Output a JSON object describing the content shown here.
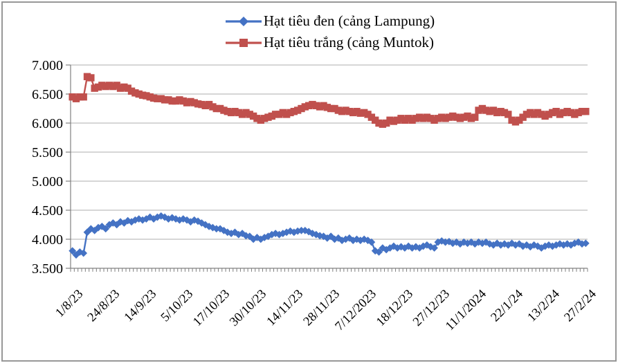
{
  "chart_data": {
    "type": "line",
    "title": "",
    "xlabel": "",
    "ylabel": "",
    "grid": true,
    "legend_position": "top-center",
    "y_min": 3500,
    "y_max": 7000,
    "y_step": 500,
    "y_tick_labels": [
      "3.500",
      "4.000",
      "4.500",
      "5.000",
      "5.500",
      "6.000",
      "6.500",
      "7.000"
    ],
    "x_tick_labels": [
      "1/8/23",
      "24/8/23",
      "14/9/23",
      "5/10/23",
      "17/10/23",
      "30/10/23",
      "14/11/23",
      "28/11/23",
      "7/12/2023",
      "18/12/23",
      "27/12/23",
      "11/1/2024",
      "22/1/24",
      "13/2/24",
      "27/2/24"
    ],
    "axis_color": "#808080",
    "gridline_color": "#ACACAC",
    "series": [
      {
        "name": "Hạt tiêu đen (cảng Lampung)",
        "color": "#4472C4",
        "marker": "diamond",
        "values": [
          3800,
          3730,
          3780,
          3760,
          4120,
          4180,
          4150,
          4200,
          4220,
          4180,
          4250,
          4280,
          4250,
          4300,
          4280,
          4320,
          4300,
          4330,
          4350,
          4330,
          4350,
          4380,
          4350,
          4380,
          4400,
          4380,
          4350,
          4370,
          4350,
          4330,
          4350,
          4330,
          4300,
          4330,
          4310,
          4280,
          4250,
          4220,
          4200,
          4180,
          4180,
          4150,
          4120,
          4100,
          4120,
          4080,
          4100,
          4060,
          4050,
          4000,
          4030,
          4000,
          4030,
          4050,
          4080,
          4100,
          4080,
          4100,
          4120,
          4140,
          4120,
          4140,
          4150,
          4150,
          4130,
          4100,
          4080,
          4060,
          4050,
          4020,
          4050,
          4000,
          4020,
          3980,
          4000,
          4020,
          3980,
          4000,
          3980,
          4000,
          3980,
          3950,
          3800,
          3780,
          3850,
          3820,
          3850,
          3880,
          3850,
          3870,
          3850,
          3880,
          3850,
          3870,
          3850,
          3880,
          3900,
          3870,
          3850,
          3950,
          3970,
          3950,
          3960,
          3930,
          3950,
          3920,
          3950,
          3930,
          3950,
          3920,
          3950,
          3930,
          3950,
          3920,
          3900,
          3930,
          3900,
          3920,
          3900,
          3930,
          3900,
          3920,
          3880,
          3900,
          3870,
          3900,
          3880,
          3850,
          3880,
          3900,
          3880,
          3900,
          3920,
          3900,
          3920,
          3900,
          3930,
          3950,
          3920,
          3930
        ]
      },
      {
        "name": "Hạt tiêu trắng (cảng Muntok)",
        "color": "#C0504D",
        "marker": "square",
        "values": [
          6450,
          6420,
          6450,
          6450,
          6800,
          6780,
          6600,
          6620,
          6650,
          6630,
          6650,
          6630,
          6650,
          6600,
          6620,
          6600,
          6550,
          6520,
          6500,
          6480,
          6470,
          6450,
          6430,
          6420,
          6420,
          6400,
          6400,
          6380,
          6380,
          6400,
          6380,
          6350,
          6370,
          6350,
          6330,
          6320,
          6300,
          6320,
          6280,
          6250,
          6250,
          6220,
          6200,
          6180,
          6200,
          6180,
          6150,
          6180,
          6150,
          6120,
          6080,
          6050,
          6080,
          6100,
          6120,
          6150,
          6150,
          6180,
          6150,
          6180,
          6200,
          6220,
          6250,
          6280,
          6300,
          6320,
          6300,
          6280,
          6300,
          6270,
          6250,
          6250,
          6220,
          6200,
          6220,
          6200,
          6180,
          6200,
          6170,
          6180,
          6150,
          6100,
          6050,
          6000,
          5980,
          6000,
          6050,
          6030,
          6050,
          6080,
          6050,
          6080,
          6050,
          6080,
          6100,
          6080,
          6100,
          6080,
          6050,
          6080,
          6100,
          6080,
          6100,
          6120,
          6100,
          6080,
          6100,
          6120,
          6080,
          6100,
          6220,
          6250,
          6220,
          6200,
          6220,
          6180,
          6200,
          6180,
          6150,
          6050,
          6020,
          6050,
          6100,
          6150,
          6180,
          6150,
          6180,
          6150,
          6120,
          6150,
          6180,
          6200,
          6150,
          6180,
          6200,
          6180,
          6150,
          6180,
          6200,
          6200
        ]
      }
    ]
  }
}
